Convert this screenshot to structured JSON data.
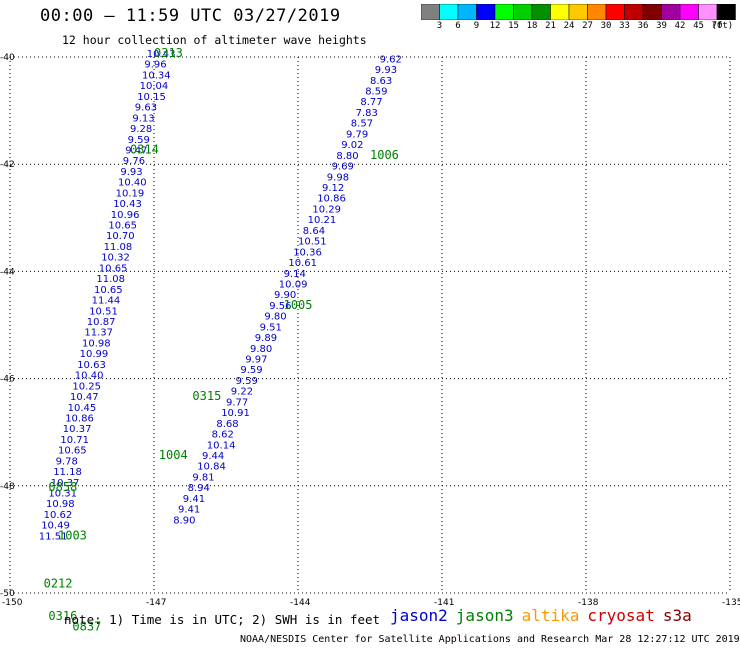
{
  "header": {
    "title": "00:00 – 11:59 UTC 03/27/2019",
    "subtitle": "12 hour collection of altimeter wave heights"
  },
  "colorbar": {
    "colors": [
      "#808080",
      "#00ffff",
      "#00b7ff",
      "#0000ff",
      "#00ff00",
      "#00d000",
      "#009000",
      "#ffff00",
      "#ffc800",
      "#ff8800",
      "#ff0000",
      "#c00000",
      "#800000",
      "#a000a0",
      "#ff00ff",
      "#ff90ff",
      "#000000"
    ],
    "labels": [
      "3",
      "6",
      "9",
      "12",
      "15",
      "18",
      "21",
      "24",
      "27",
      "30",
      "33",
      "36",
      "39",
      "42",
      "45",
      "70"
    ],
    "unit": "(ft)"
  },
  "notes": {
    "note": "note:  1) Time is in UTC; 2) SWH is in feet",
    "credit": "NOAA/NESDIS Center for Satellite Applications and Research    Mar 28 12:27:12 UTC 2019"
  },
  "legend": [
    {
      "name": "jason2",
      "color": "#0000cc"
    },
    {
      "name": "jason3",
      "color": "#008000"
    },
    {
      "name": "altika",
      "color": "#ff9900"
    },
    {
      "name": "cryosat",
      "color": "#cc0000"
    },
    {
      "name": "s3a",
      "color": "#800000"
    }
  ],
  "chart_data": {
    "type": "scatter",
    "title": "00:00 – 11:59 UTC 03/27/2019",
    "subtitle": "12 hour collection of altimeter wave heights",
    "xlabel": "",
    "ylabel": "",
    "xlim": [
      -150,
      -135
    ],
    "ylim": [
      -50,
      -40
    ],
    "x_ticks": [
      "-150",
      "-147",
      "-144",
      "-141",
      "-138",
      "-135"
    ],
    "y_ticks": [
      "-40",
      "-42",
      "-44",
      "-46",
      "-48",
      "-50"
    ],
    "grid": "dotted",
    "units": "ft",
    "series": [
      {
        "name": "altika",
        "color": "#0000cc",
        "points": [
          {
            "x": -147.15,
            "y": -40.0,
            "v": "10.43"
          },
          {
            "x": -147.2,
            "y": -40.2,
            "v": "9.96"
          },
          {
            "x": -147.25,
            "y": -40.4,
            "v": "10.34"
          },
          {
            "x": -147.3,
            "y": -40.6,
            "v": "10.04"
          },
          {
            "x": -147.35,
            "y": -40.8,
            "v": "10.15"
          },
          {
            "x": -147.4,
            "y": -41.0,
            "v": "9.63"
          },
          {
            "x": -147.45,
            "y": -41.2,
            "v": "9.13"
          },
          {
            "x": -147.5,
            "y": -41.4,
            "v": "9.28"
          },
          {
            "x": -147.55,
            "y": -41.6,
            "v": "9.59"
          },
          {
            "x": -147.6,
            "y": -41.8,
            "v": "9.47"
          },
          {
            "x": -147.65,
            "y": -42.0,
            "v": "9.76"
          },
          {
            "x": -147.7,
            "y": -42.2,
            "v": "9.93"
          },
          {
            "x": -147.75,
            "y": -42.4,
            "v": "10.40"
          },
          {
            "x": -147.8,
            "y": -42.6,
            "v": "10.19"
          },
          {
            "x": -147.85,
            "y": -42.8,
            "v": "10.43"
          },
          {
            "x": -147.9,
            "y": -43.0,
            "v": "10.96"
          },
          {
            "x": -147.95,
            "y": -43.2,
            "v": "10.65"
          },
          {
            "x": -148.0,
            "y": -43.4,
            "v": "10.70"
          },
          {
            "x": -148.05,
            "y": -43.6,
            "v": "11.08"
          },
          {
            "x": -148.1,
            "y": -43.8,
            "v": "10.32"
          },
          {
            "x": -148.15,
            "y": -44.0,
            "v": "10.65"
          },
          {
            "x": -148.2,
            "y": -44.2,
            "v": "11.08"
          },
          {
            "x": -148.25,
            "y": -44.4,
            "v": "10.65"
          },
          {
            "x": -148.3,
            "y": -44.6,
            "v": "11.44"
          },
          {
            "x": -148.35,
            "y": -44.8,
            "v": "10.51"
          },
          {
            "x": -148.4,
            "y": -45.0,
            "v": "10.87"
          },
          {
            "x": -148.45,
            "y": -45.2,
            "v": "11.37"
          },
          {
            "x": -148.5,
            "y": -45.4,
            "v": "10.98"
          },
          {
            "x": -148.55,
            "y": -45.6,
            "v": "10.99"
          },
          {
            "x": -148.6,
            "y": -45.8,
            "v": "10.63"
          },
          {
            "x": -148.65,
            "y": -46.0,
            "v": "10.40"
          },
          {
            "x": -148.7,
            "y": -46.2,
            "v": "10.25"
          },
          {
            "x": -148.75,
            "y": -46.4,
            "v": "10.47"
          },
          {
            "x": -148.8,
            "y": -46.6,
            "v": "10.45"
          },
          {
            "x": -148.85,
            "y": -46.8,
            "v": "10.86"
          },
          {
            "x": -148.9,
            "y": -47.0,
            "v": "10.37"
          },
          {
            "x": -148.95,
            "y": -47.2,
            "v": "10.71"
          },
          {
            "x": -149.0,
            "y": -47.4,
            "v": "10.65"
          },
          {
            "x": -149.05,
            "y": -47.6,
            "v": "9.78"
          },
          {
            "x": -149.1,
            "y": -47.8,
            "v": "11.18"
          },
          {
            "x": -149.15,
            "y": -48.0,
            "v": "10.37"
          },
          {
            "x": -149.2,
            "y": -48.2,
            "v": "10.31"
          },
          {
            "x": -149.25,
            "y": -48.4,
            "v": "10.98"
          },
          {
            "x": -149.3,
            "y": -48.6,
            "v": "10.62"
          },
          {
            "x": -149.35,
            "y": -48.8,
            "v": "10.49"
          },
          {
            "x": -149.4,
            "y": -49.0,
            "v": "11.51"
          }
        ]
      },
      {
        "name": "jason3",
        "color": "#0000cc",
        "points": [
          {
            "x": -142.3,
            "y": -40.1,
            "v": "9.62"
          },
          {
            "x": -142.4,
            "y": -40.3,
            "v": "9.93"
          },
          {
            "x": -142.5,
            "y": -40.5,
            "v": "8.63"
          },
          {
            "x": -142.6,
            "y": -40.7,
            "v": "8.59"
          },
          {
            "x": -142.7,
            "y": -40.9,
            "v": "8.77"
          },
          {
            "x": -142.8,
            "y": -41.1,
            "v": "7.83"
          },
          {
            "x": -142.9,
            "y": -41.3,
            "v": "8.57"
          },
          {
            "x": -143.0,
            "y": -41.5,
            "v": "9.79"
          },
          {
            "x": -143.1,
            "y": -41.7,
            "v": "9.02"
          },
          {
            "x": -143.2,
            "y": -41.9,
            "v": "8.80"
          },
          {
            "x": -143.3,
            "y": -42.1,
            "v": "9.69"
          },
          {
            "x": -143.4,
            "y": -42.3,
            "v": "9.98"
          },
          {
            "x": -143.5,
            "y": -42.5,
            "v": "9.12"
          },
          {
            "x": -143.6,
            "y": -42.7,
            "v": "10.86"
          },
          {
            "x": -143.7,
            "y": -42.9,
            "v": "10.29"
          },
          {
            "x": -143.8,
            "y": -43.1,
            "v": "10.21"
          },
          {
            "x": -143.9,
            "y": -43.3,
            "v": "8.64"
          },
          {
            "x": -144.0,
            "y": -43.5,
            "v": "10.51"
          },
          {
            "x": -144.1,
            "y": -43.7,
            "v": "10.36"
          },
          {
            "x": -144.2,
            "y": -43.9,
            "v": "10.61"
          },
          {
            "x": -144.3,
            "y": -44.1,
            "v": "9.14"
          },
          {
            "x": -144.4,
            "y": -44.3,
            "v": "10.09"
          },
          {
            "x": -144.5,
            "y": -44.5,
            "v": "9.90"
          },
          {
            "x": -144.6,
            "y": -44.7,
            "v": "9.56"
          },
          {
            "x": -144.7,
            "y": -44.9,
            "v": "9.80"
          },
          {
            "x": -144.8,
            "y": -45.1,
            "v": "9.51"
          },
          {
            "x": -144.9,
            "y": -45.3,
            "v": "9.89"
          },
          {
            "x": -145.0,
            "y": -45.5,
            "v": "9.80"
          },
          {
            "x": -145.1,
            "y": -45.7,
            "v": "9.97"
          },
          {
            "x": -145.2,
            "y": -45.9,
            "v": "9.59"
          },
          {
            "x": -145.3,
            "y": -46.1,
            "v": "9.59"
          },
          {
            "x": -145.4,
            "y": -46.3,
            "v": "9.22"
          },
          {
            "x": -145.5,
            "y": -46.5,
            "v": "9.77"
          },
          {
            "x": -145.6,
            "y": -46.7,
            "v": "10.91"
          },
          {
            "x": -145.7,
            "y": -46.9,
            "v": "8.68"
          },
          {
            "x": -145.8,
            "y": -47.1,
            "v": "8.62"
          },
          {
            "x": -145.9,
            "y": -47.3,
            "v": "10.14"
          },
          {
            "x": -146.0,
            "y": -47.5,
            "v": "9.44"
          },
          {
            "x": -146.1,
            "y": -47.7,
            "v": "10.84"
          },
          {
            "x": -146.2,
            "y": -47.9,
            "v": "9.81"
          },
          {
            "x": -146.3,
            "y": -48.1,
            "v": "8.94"
          },
          {
            "x": -146.4,
            "y": -48.3,
            "v": "9.41"
          },
          {
            "x": -146.5,
            "y": -48.5,
            "v": "9.41"
          },
          {
            "x": -146.6,
            "y": -48.7,
            "v": "8.90"
          }
        ]
      },
      {
        "name": "times",
        "color": "#008000",
        "points": [
          {
            "x": -147.0,
            "y": -40.0,
            "v": "0313"
          },
          {
            "x": -147.5,
            "y": -41.8,
            "v": "0314"
          },
          {
            "x": -142.5,
            "y": -41.9,
            "v": "1006"
          },
          {
            "x": -144.3,
            "y": -44.7,
            "v": "1005"
          },
          {
            "x": -146.2,
            "y": -46.4,
            "v": "0315"
          },
          {
            "x": -146.9,
            "y": -47.5,
            "v": "1004"
          },
          {
            "x": -149.2,
            "y": -48.1,
            "v": "0858"
          },
          {
            "x": -149.0,
            "y": -49.0,
            "v": "1003"
          },
          {
            "x": -149.3,
            "y": -49.9,
            "v": "0212"
          },
          {
            "x": -149.2,
            "y": -50.5,
            "v": "0316"
          },
          {
            "x": -148.7,
            "y": -50.7,
            "v": "0837"
          }
        ]
      }
    ]
  }
}
